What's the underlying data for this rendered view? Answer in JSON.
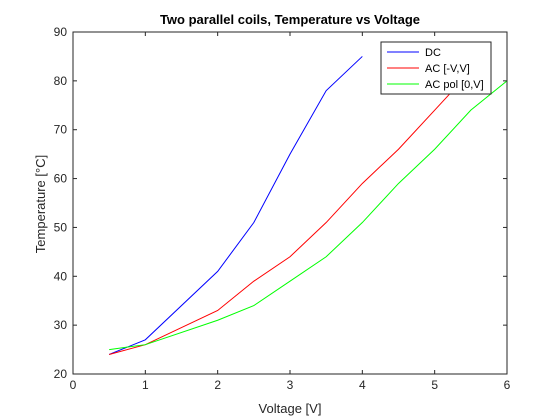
{
  "chart_data": {
    "type": "line",
    "title": "Two parallel coils, Temperature vs Voltage",
    "xlabel": "Voltage [V]",
    "ylabel": "Temperature [°C]",
    "xlim": [
      0,
      6
    ],
    "ylim": [
      20,
      90
    ],
    "xticks": [
      0,
      1,
      2,
      3,
      4,
      5,
      6
    ],
    "yticks": [
      20,
      30,
      40,
      50,
      60,
      70,
      80,
      90
    ],
    "grid": false,
    "legend_position": "top-right",
    "series": [
      {
        "name": "DC",
        "color": "#0000ff",
        "x": [
          0.5,
          1,
          2,
          2.5,
          3,
          3.5,
          4
        ],
        "y": [
          24,
          27,
          41,
          51,
          65,
          78,
          85
        ]
      },
      {
        "name": "AC [-V,V]",
        "color": "#ff0000",
        "x": [
          0.5,
          1,
          2,
          2.5,
          3,
          3.5,
          4,
          4.5,
          5,
          5.5
        ],
        "y": [
          24,
          26,
          33,
          39,
          44,
          51,
          59,
          66,
          74,
          82
        ]
      },
      {
        "name": "AC pol [0,V]",
        "color": "#00ff00",
        "x": [
          0.5,
          1,
          2,
          2.5,
          3,
          3.5,
          4,
          4.5,
          5,
          5.5,
          6
        ],
        "y": [
          25,
          26,
          31,
          34,
          39,
          44,
          51,
          59,
          66,
          74,
          80
        ]
      }
    ]
  }
}
